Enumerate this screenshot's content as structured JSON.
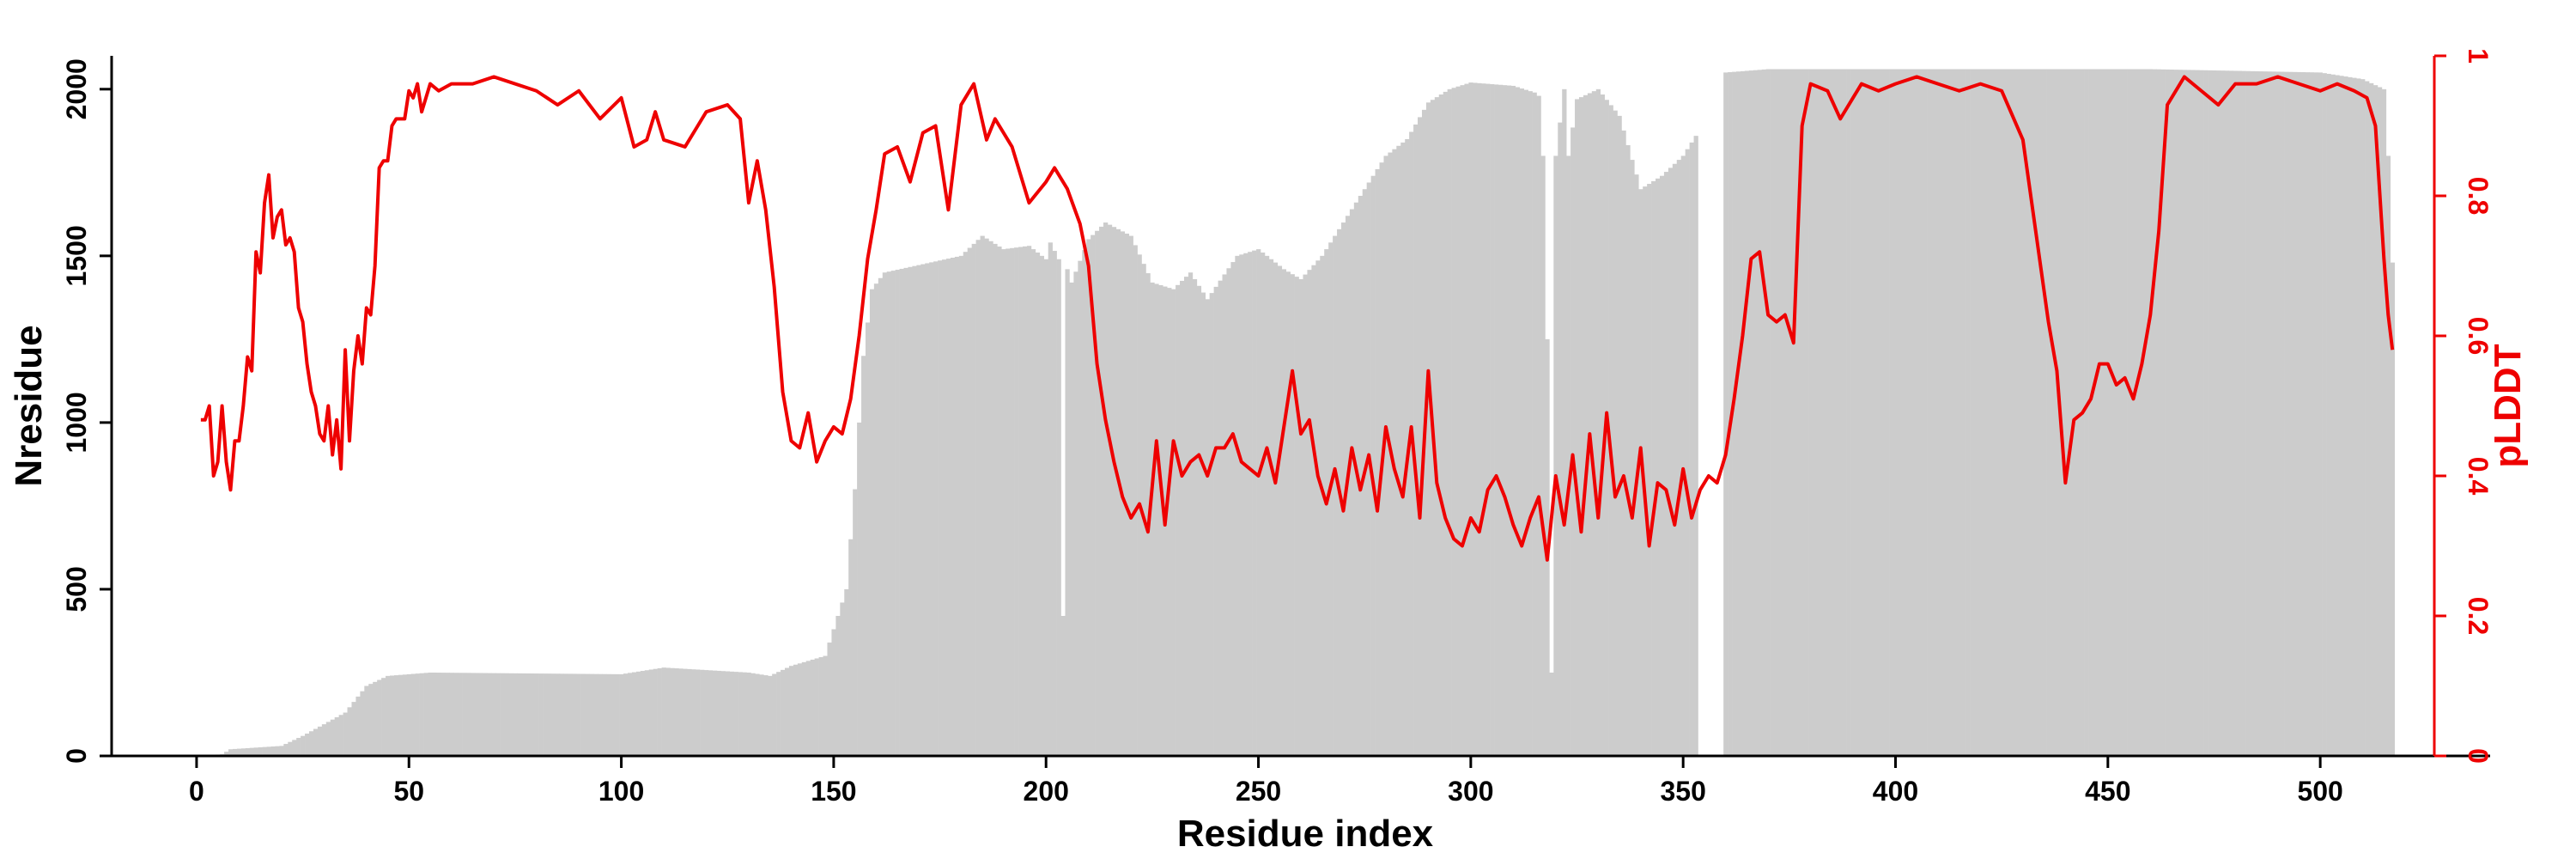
{
  "chart_data": {
    "type": "bar+line",
    "xlabel": "Residue index",
    "ylabel_left": "Nresidue",
    "ylabel_right": "pLDDT",
    "xlim": [
      -20,
      540
    ],
    "ylim_left": [
      0,
      2100
    ],
    "ylim_right": [
      0,
      1
    ],
    "x_ticks": [
      0,
      50,
      100,
      150,
      200,
      250,
      300,
      350,
      400,
      450,
      500
    ],
    "y_left_ticks": [
      0,
      500,
      1000,
      1500,
      2000
    ],
    "y_right_ticks": [
      0,
      0.2,
      0.4,
      0.6,
      0.8,
      1
    ],
    "colors": {
      "bars": "#cccccc",
      "line": "#ee0000",
      "axis": "#000000",
      "right_axis": "#ee0000"
    },
    "bars_series": {
      "name": "Nresidue",
      "breakpoints": [
        [
          1,
          0
        ],
        [
          6,
          5
        ],
        [
          8,
          20
        ],
        [
          20,
          30
        ],
        [
          25,
          60
        ],
        [
          35,
          130
        ],
        [
          40,
          210
        ],
        [
          45,
          240
        ],
        [
          55,
          250
        ],
        [
          100,
          245
        ],
        [
          110,
          265
        ],
        [
          130,
          250
        ],
        [
          135,
          240
        ],
        [
          140,
          270
        ],
        [
          148,
          300
        ],
        [
          150,
          380
        ],
        [
          153,
          500
        ],
        [
          155,
          800
        ],
        [
          157,
          1200
        ],
        [
          159,
          1400
        ],
        [
          162,
          1450
        ],
        [
          180,
          1500
        ],
        [
          185,
          1560
        ],
        [
          190,
          1520
        ],
        [
          196,
          1530
        ],
        [
          200,
          1490
        ],
        [
          201,
          1540
        ],
        [
          203,
          1490
        ],
        [
          204,
          420
        ],
        [
          205,
          1460
        ],
        [
          206,
          1420
        ],
        [
          210,
          1550
        ],
        [
          214,
          1600
        ],
        [
          220,
          1560
        ],
        [
          225,
          1420
        ],
        [
          230,
          1400
        ],
        [
          234,
          1450
        ],
        [
          238,
          1370
        ],
        [
          245,
          1500
        ],
        [
          250,
          1520
        ],
        [
          256,
          1460
        ],
        [
          260,
          1430
        ],
        [
          265,
          1500
        ],
        [
          270,
          1600
        ],
        [
          275,
          1700
        ],
        [
          280,
          1800
        ],
        [
          285,
          1850
        ],
        [
          290,
          1960
        ],
        [
          295,
          2000
        ],
        [
          300,
          2020
        ],
        [
          310,
          2010
        ],
        [
          315,
          1990
        ],
        [
          316,
          1980
        ],
        [
          317,
          1800
        ],
        [
          318,
          1250
        ],
        [
          319,
          250
        ],
        [
          320,
          1800
        ],
        [
          322,
          2000
        ],
        [
          323,
          1800
        ],
        [
          325,
          1970
        ],
        [
          330,
          2000
        ],
        [
          335,
          1920
        ],
        [
          340,
          1700
        ],
        [
          345,
          1740
        ],
        [
          350,
          1800
        ],
        [
          353,
          1860
        ],
        [
          354,
          0
        ],
        [
          359,
          0
        ],
        [
          360,
          2050
        ],
        [
          370,
          2060
        ],
        [
          400,
          2060
        ],
        [
          460,
          2060
        ],
        [
          500,
          2050
        ],
        [
          510,
          2030
        ],
        [
          515,
          2000
        ],
        [
          516,
          1800
        ],
        [
          517,
          1480
        ]
      ]
    },
    "line_series": {
      "name": "pLDDT",
      "points": [
        [
          1,
          0.48
        ],
        [
          2,
          0.48
        ],
        [
          3,
          0.5
        ],
        [
          4,
          0.4
        ],
        [
          5,
          0.42
        ],
        [
          6,
          0.5
        ],
        [
          7,
          0.42
        ],
        [
          8,
          0.38
        ],
        [
          9,
          0.45
        ],
        [
          10,
          0.45
        ],
        [
          11,
          0.5
        ],
        [
          12,
          0.57
        ],
        [
          13,
          0.55
        ],
        [
          14,
          0.72
        ],
        [
          15,
          0.69
        ],
        [
          16,
          0.79
        ],
        [
          17,
          0.83
        ],
        [
          18,
          0.74
        ],
        [
          19,
          0.77
        ],
        [
          20,
          0.78
        ],
        [
          21,
          0.73
        ],
        [
          22,
          0.74
        ],
        [
          23,
          0.72
        ],
        [
          24,
          0.64
        ],
        [
          25,
          0.62
        ],
        [
          26,
          0.56
        ],
        [
          27,
          0.52
        ],
        [
          28,
          0.5
        ],
        [
          29,
          0.46
        ],
        [
          30,
          0.45
        ],
        [
          31,
          0.5
        ],
        [
          32,
          0.43
        ],
        [
          33,
          0.48
        ],
        [
          34,
          0.41
        ],
        [
          35,
          0.58
        ],
        [
          36,
          0.45
        ],
        [
          37,
          0.55
        ],
        [
          38,
          0.6
        ],
        [
          39,
          0.56
        ],
        [
          40,
          0.64
        ],
        [
          41,
          0.63
        ],
        [
          42,
          0.7
        ],
        [
          43,
          0.84
        ],
        [
          44,
          0.85
        ],
        [
          45,
          0.85
        ],
        [
          46,
          0.9
        ],
        [
          47,
          0.91
        ],
        [
          48,
          0.91
        ],
        [
          49,
          0.91
        ],
        [
          50,
          0.95
        ],
        [
          51,
          0.94
        ],
        [
          52,
          0.96
        ],
        [
          53,
          0.92
        ],
        [
          54,
          0.94
        ],
        [
          55,
          0.96
        ],
        [
          57,
          0.95
        ],
        [
          60,
          0.96
        ],
        [
          65,
          0.96
        ],
        [
          70,
          0.97
        ],
        [
          80,
          0.95
        ],
        [
          85,
          0.93
        ],
        [
          90,
          0.95
        ],
        [
          95,
          0.91
        ],
        [
          100,
          0.94
        ],
        [
          103,
          0.87
        ],
        [
          106,
          0.88
        ],
        [
          108,
          0.92
        ],
        [
          110,
          0.88
        ],
        [
          115,
          0.87
        ],
        [
          118,
          0.9
        ],
        [
          120,
          0.92
        ],
        [
          125,
          0.93
        ],
        [
          128,
          0.91
        ],
        [
          130,
          0.79
        ],
        [
          132,
          0.85
        ],
        [
          134,
          0.78
        ],
        [
          136,
          0.67
        ],
        [
          138,
          0.52
        ],
        [
          140,
          0.45
        ],
        [
          142,
          0.44
        ],
        [
          144,
          0.49
        ],
        [
          146,
          0.42
        ],
        [
          148,
          0.45
        ],
        [
          150,
          0.47
        ],
        [
          152,
          0.46
        ],
        [
          154,
          0.51
        ],
        [
          156,
          0.6
        ],
        [
          158,
          0.71
        ],
        [
          160,
          0.78
        ],
        [
          162,
          0.86
        ],
        [
          165,
          0.87
        ],
        [
          168,
          0.82
        ],
        [
          171,
          0.89
        ],
        [
          174,
          0.9
        ],
        [
          177,
          0.78
        ],
        [
          180,
          0.93
        ],
        [
          183,
          0.96
        ],
        [
          186,
          0.88
        ],
        [
          188,
          0.91
        ],
        [
          192,
          0.87
        ],
        [
          196,
          0.79
        ],
        [
          200,
          0.82
        ],
        [
          202,
          0.84
        ],
        [
          205,
          0.81
        ],
        [
          208,
          0.76
        ],
        [
          210,
          0.7
        ],
        [
          212,
          0.56
        ],
        [
          214,
          0.48
        ],
        [
          216,
          0.42
        ],
        [
          218,
          0.37
        ],
        [
          220,
          0.34
        ],
        [
          222,
          0.36
        ],
        [
          224,
          0.32
        ],
        [
          226,
          0.45
        ],
        [
          228,
          0.33
        ],
        [
          230,
          0.45
        ],
        [
          232,
          0.4
        ],
        [
          234,
          0.42
        ],
        [
          236,
          0.43
        ],
        [
          238,
          0.4
        ],
        [
          240,
          0.44
        ],
        [
          242,
          0.44
        ],
        [
          244,
          0.46
        ],
        [
          246,
          0.42
        ],
        [
          248,
          0.41
        ],
        [
          250,
          0.4
        ],
        [
          252,
          0.44
        ],
        [
          254,
          0.39
        ],
        [
          256,
          0.47
        ],
        [
          258,
          0.55
        ],
        [
          260,
          0.46
        ],
        [
          262,
          0.48
        ],
        [
          264,
          0.4
        ],
        [
          266,
          0.36
        ],
        [
          268,
          0.41
        ],
        [
          270,
          0.35
        ],
        [
          272,
          0.44
        ],
        [
          274,
          0.38
        ],
        [
          276,
          0.43
        ],
        [
          278,
          0.35
        ],
        [
          280,
          0.47
        ],
        [
          282,
          0.41
        ],
        [
          284,
          0.37
        ],
        [
          286,
          0.47
        ],
        [
          288,
          0.34
        ],
        [
          290,
          0.55
        ],
        [
          292,
          0.39
        ],
        [
          294,
          0.34
        ],
        [
          296,
          0.31
        ],
        [
          298,
          0.3
        ],
        [
          300,
          0.34
        ],
        [
          302,
          0.32
        ],
        [
          304,
          0.38
        ],
        [
          306,
          0.4
        ],
        [
          308,
          0.37
        ],
        [
          310,
          0.33
        ],
        [
          312,
          0.3
        ],
        [
          314,
          0.34
        ],
        [
          316,
          0.37
        ],
        [
          318,
          0.28
        ],
        [
          320,
          0.4
        ],
        [
          322,
          0.33
        ],
        [
          324,
          0.43
        ],
        [
          326,
          0.32
        ],
        [
          328,
          0.46
        ],
        [
          330,
          0.34
        ],
        [
          332,
          0.49
        ],
        [
          334,
          0.37
        ],
        [
          336,
          0.4
        ],
        [
          338,
          0.34
        ],
        [
          340,
          0.44
        ],
        [
          342,
          0.3
        ],
        [
          344,
          0.39
        ],
        [
          346,
          0.38
        ],
        [
          348,
          0.33
        ],
        [
          350,
          0.41
        ],
        [
          352,
          0.34
        ],
        [
          354,
          0.38
        ],
        [
          356,
          0.4
        ],
        [
          358,
          0.39
        ],
        [
          360,
          0.43
        ],
        [
          362,
          0.51
        ],
        [
          364,
          0.6
        ],
        [
          366,
          0.71
        ],
        [
          368,
          0.72
        ],
        [
          370,
          0.63
        ],
        [
          372,
          0.62
        ],
        [
          374,
          0.63
        ],
        [
          376,
          0.59
        ],
        [
          378,
          0.9
        ],
        [
          380,
          0.96
        ],
        [
          384,
          0.95
        ],
        [
          387,
          0.91
        ],
        [
          392,
          0.96
        ],
        [
          396,
          0.95
        ],
        [
          400,
          0.96
        ],
        [
          405,
          0.97
        ],
        [
          410,
          0.96
        ],
        [
          415,
          0.95
        ],
        [
          420,
          0.96
        ],
        [
          425,
          0.95
        ],
        [
          430,
          0.88
        ],
        [
          433,
          0.75
        ],
        [
          436,
          0.62
        ],
        [
          438,
          0.55
        ],
        [
          440,
          0.39
        ],
        [
          442,
          0.48
        ],
        [
          444,
          0.49
        ],
        [
          446,
          0.51
        ],
        [
          448,
          0.56
        ],
        [
          450,
          0.56
        ],
        [
          452,
          0.53
        ],
        [
          454,
          0.54
        ],
        [
          456,
          0.51
        ],
        [
          458,
          0.56
        ],
        [
          460,
          0.63
        ],
        [
          462,
          0.75
        ],
        [
          464,
          0.93
        ],
        [
          468,
          0.97
        ],
        [
          472,
          0.95
        ],
        [
          476,
          0.93
        ],
        [
          480,
          0.96
        ],
        [
          485,
          0.96
        ],
        [
          490,
          0.97
        ],
        [
          495,
          0.96
        ],
        [
          500,
          0.95
        ],
        [
          504,
          0.96
        ],
        [
          508,
          0.95
        ],
        [
          511,
          0.94
        ],
        [
          513,
          0.9
        ],
        [
          515,
          0.71
        ],
        [
          516,
          0.63
        ],
        [
          517,
          0.58
        ]
      ]
    }
  }
}
